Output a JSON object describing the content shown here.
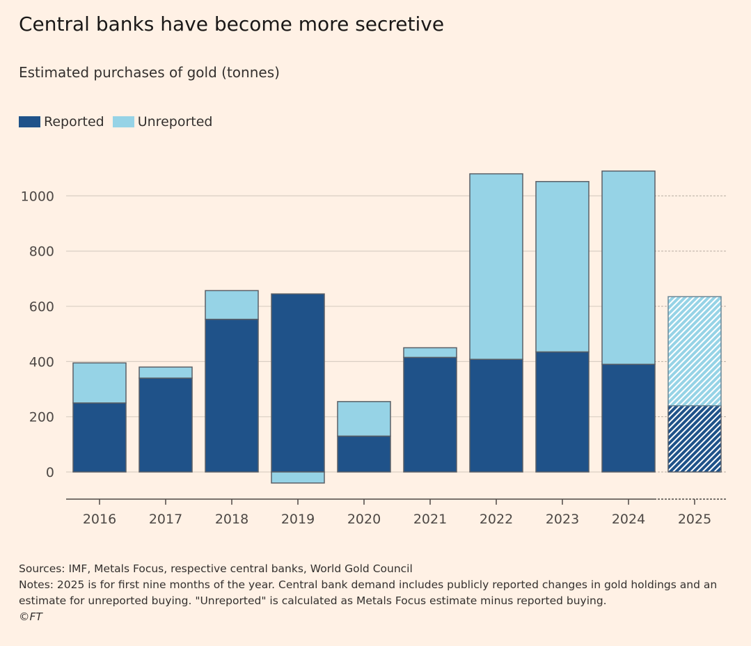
{
  "title": "Central banks have become more secretive",
  "subtitle": "Estimated purchases of gold (tonnes)",
  "legend": [
    {
      "label": "Reported",
      "color": "#1f5289"
    },
    {
      "label": "Unreported",
      "color": "#96d3e6"
    }
  ],
  "footer": {
    "sources": "Sources: IMF, Metals Focus, respective central banks, World Gold Council",
    "notes_line1": "Notes: 2025 is for first nine months of the year. Central bank demand includes publicly reported changes in gold holdings and an",
    "notes_line2": "estimate for unreported buying. \"Unreported\" is calculated as Metals Focus estimate minus reported buying.",
    "copyright": "©FT"
  },
  "chart_data": {
    "type": "bar",
    "stacked": true,
    "categories": [
      "2016",
      "2017",
      "2018",
      "2019",
      "2020",
      "2021",
      "2022",
      "2023",
      "2024",
      "2025"
    ],
    "series": [
      {
        "name": "Reported",
        "color": "#1f5289",
        "values": [
          250,
          340,
          553,
          645,
          130,
          415,
          408,
          435,
          390,
          240
        ]
      },
      {
        "name": "Unreported",
        "color": "#96d3e6",
        "values": [
          145,
          40,
          104,
          -40,
          125,
          35,
          672,
          617,
          700,
          395
        ]
      }
    ],
    "hatched_categories": [
      "2025"
    ],
    "yticks": [
      0,
      200,
      400,
      600,
      800,
      1000
    ],
    "ylim": [
      -100,
      1100
    ],
    "grid": true
  }
}
